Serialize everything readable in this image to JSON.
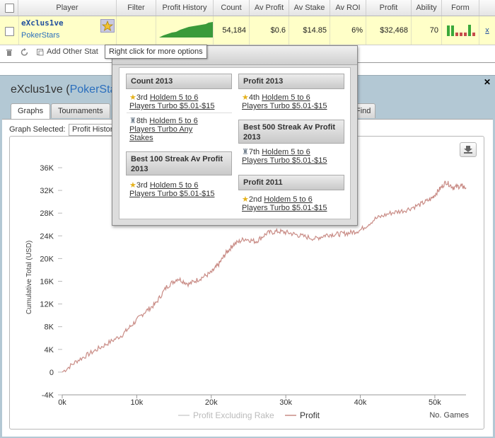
{
  "table": {
    "headers": [
      "Player",
      "Filter",
      "Profit History",
      "Count",
      "Av Profit",
      "Av Stake",
      "Av ROI",
      "Profit",
      "Ability",
      "Form"
    ],
    "row": {
      "player_name": "eXclus1ve",
      "site": "PokerStars",
      "count": "54,184",
      "av_profit": "$0.6",
      "av_stake": "$14.85",
      "av_roi": "6%",
      "profit": "$32,468",
      "ability": "70",
      "action": "x"
    },
    "form_bars": [
      {
        "level": 0.75,
        "color": "#3aa83a"
      },
      {
        "level": 0.75,
        "color": "#3aa83a"
      },
      {
        "level": 0.25,
        "color": "#c64b4b"
      },
      {
        "level": 0.25,
        "color": "#c64b4b"
      },
      {
        "level": 0.25,
        "color": "#c64b4b"
      },
      {
        "level": 0.8,
        "color": "#3aa83a"
      },
      {
        "level": 0.25,
        "color": "#c64b4b"
      }
    ]
  },
  "toolbar": {
    "add_stat": "Add Other Stat"
  },
  "tooltip": "Right click for more options",
  "panel": {
    "player": "eXclus1ve",
    "site_open": " (",
    "site": "PokerSta",
    "tabs": [
      "Graphs",
      "Tournaments"
    ],
    "tab_partial": "Find",
    "graph_selected_label": "Graph Selected:",
    "graph_selected_value": "Profit History"
  },
  "achievements": {
    "left": [
      {
        "title": "Count 2013",
        "items": [
          {
            "rank": "3rd",
            "icon": "star-icon",
            "text1": "Holdem 5 to 6",
            "text2": "Players Turbo $5.01-$15"
          },
          {
            "rank": "8th",
            "icon": "trophy-icon",
            "text1": "Holdem 5 to 6",
            "text2": "Players Turbo Any",
            "text3": "Stakes"
          }
        ]
      },
      {
        "title": "Best 100 Streak Av Profit 2013",
        "items": [
          {
            "rank": "3rd",
            "icon": "star-icon",
            "text1": "Holdem 5 to 6",
            "text2": "Players Turbo $5.01-$15"
          }
        ]
      }
    ],
    "right": [
      {
        "title": "Profit 2013",
        "items": [
          {
            "rank": "4th",
            "icon": "star-icon",
            "text1": "Holdem 5 to 6",
            "text2": "Players Turbo $5.01-$15"
          }
        ]
      },
      {
        "title": "Best 500 Streak Av Profit 2013",
        "items": [
          {
            "rank": "7th",
            "icon": "trophy-icon",
            "text1": "Holdem 5 to 6",
            "text2": "Players Turbo $5.01-$15"
          }
        ]
      },
      {
        "title": "Profit 2011",
        "items": [
          {
            "rank": "2nd",
            "icon": "star-icon",
            "text1": "Holdem 5 to 6",
            "text2": "Players Turbo $5.01-$15"
          }
        ]
      }
    ]
  },
  "colors": {
    "profit_line": "#c98c86",
    "excl_rake_line": "#cfcfcf",
    "sparkline": "#3a9a3a",
    "panel_bg": "#b3c8d4"
  },
  "chart_data": {
    "type": "line",
    "title": "",
    "xlabel": "No. Games",
    "ylabel": "Cumulative Total (USD)",
    "xlim": [
      0,
      54184
    ],
    "ylim": [
      -4000,
      38000
    ],
    "x_ticks": [
      "0k",
      "10k",
      "20k",
      "30k",
      "40k",
      "50k"
    ],
    "y_ticks": [
      "36K",
      "32K",
      "28K",
      "24K",
      "20K",
      "16K",
      "12K",
      "8K",
      "4K",
      "0",
      "-4K"
    ],
    "legend": [
      "Profit Excluding Rake",
      "Profit"
    ],
    "legend_position": "bottom",
    "series": [
      {
        "name": "Profit",
        "x": [
          0,
          2000,
          4000,
          6000,
          8000,
          9500,
          11000,
          12500,
          14000,
          15500,
          17000,
          18500,
          20000,
          21000,
          22000,
          23000,
          24500,
          26000,
          27500,
          29000,
          30500,
          32000,
          34000,
          35500,
          37000,
          38500,
          40000,
          42000,
          44000,
          46000,
          48000,
          49500,
          50500,
          51500,
          52500,
          53500,
          54184
        ],
        "y": [
          0,
          2000,
          3500,
          5000,
          6500,
          8500,
          10500,
          12000,
          15000,
          16500,
          15500,
          16500,
          17500,
          19000,
          21000,
          22500,
          23500,
          23000,
          24500,
          24800,
          24500,
          24000,
          23500,
          24200,
          24300,
          24500,
          25000,
          27000,
          28000,
          28500,
          29500,
          30500,
          32000,
          33500,
          32500,
          32800,
          32468
        ]
      },
      {
        "name": "Profit Excluding Rake",
        "x": [],
        "y": []
      }
    ]
  }
}
